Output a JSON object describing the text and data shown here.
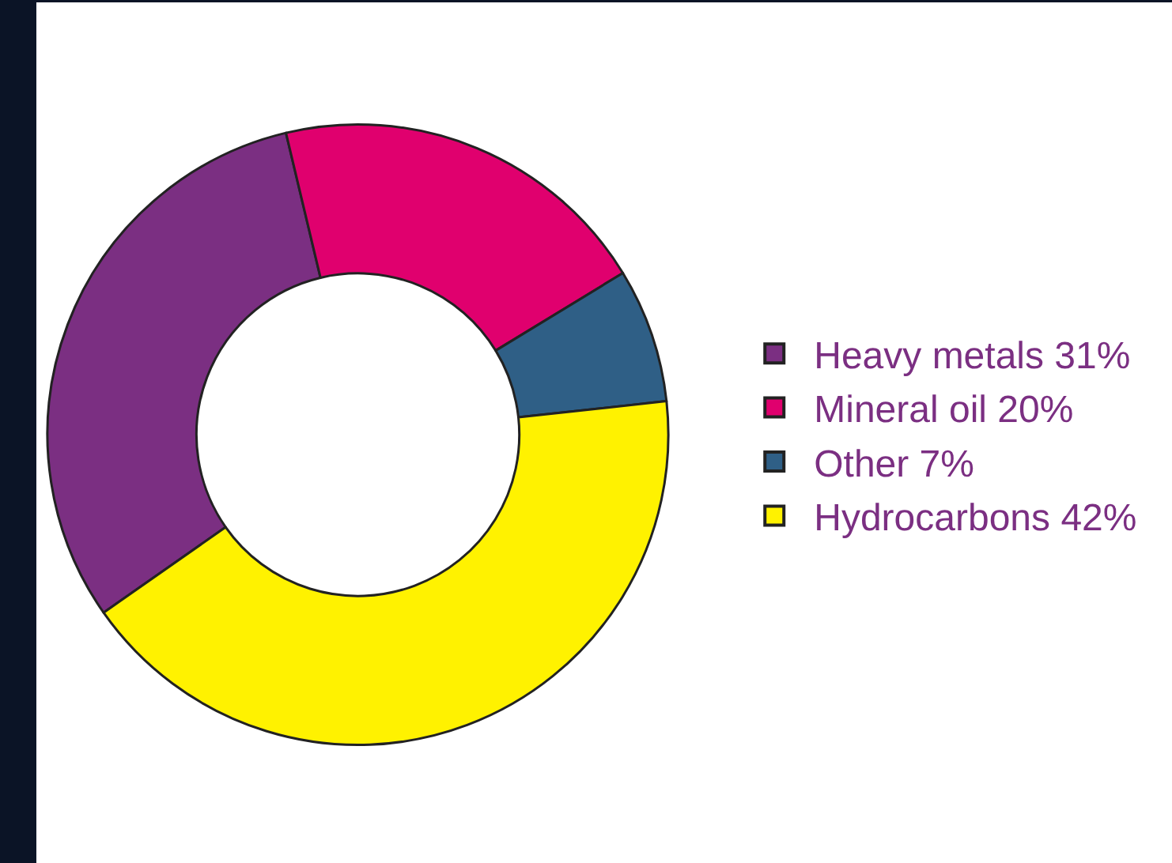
{
  "chart_data": {
    "type": "donut",
    "categories": [
      "Heavy metals 31%",
      "Mineral oil 20%",
      "Other 7%",
      "Hydrocarbons 42%"
    ],
    "values": [
      31,
      20,
      7,
      42
    ],
    "colors": [
      "#7b2f82",
      "#e0006e",
      "#2f5f86",
      "#fff200"
    ],
    "legend": "right"
  }
}
